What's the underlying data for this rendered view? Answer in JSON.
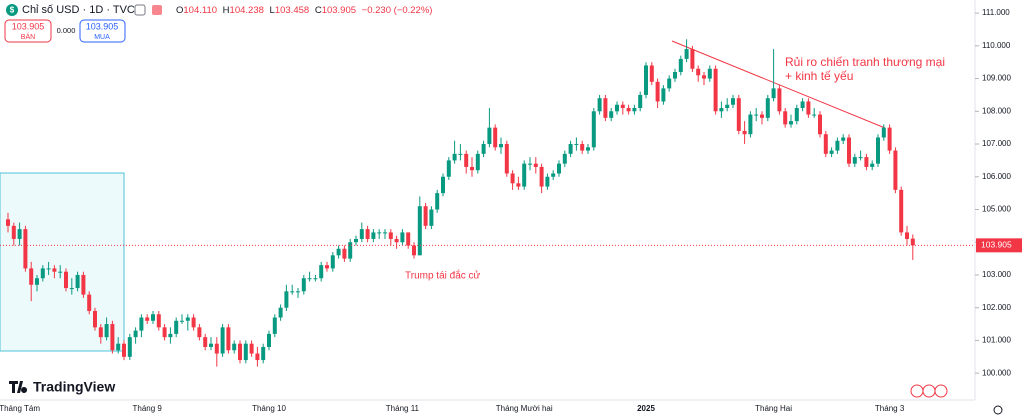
{
  "chart_data": {
    "type": "candlestick",
    "title": "Chỉ số USD · 1D · TVC",
    "legend": {
      "o_label": "O",
      "open": "104.110",
      "h_label": "H",
      "high": "104.238",
      "l_label": "L",
      "low": "103.458",
      "c_label": "C",
      "close": "103.905",
      "change": "−0.230 (−0.22%)"
    },
    "sell": {
      "price": "103.905",
      "label": "BÁN"
    },
    "spread": "0.000",
    "buy": {
      "price": "103.905",
      "label": "MUA"
    },
    "annotations": [
      "Rủi ro chiến tranh thương mại",
      "+ kinh tế yếu",
      "Trump tái đắc cử"
    ],
    "brand": "TradingView",
    "up_color": "#089981",
    "down_color": "#f23645",
    "grid": false,
    "ylim": [
      99.18,
      111.4
    ],
    "yticks": [
      {
        "value": 100,
        "label": "100.000"
      },
      {
        "value": 101,
        "label": "101.000"
      },
      {
        "value": 102,
        "label": "102.000"
      },
      {
        "value": 103,
        "label": "103.000"
      },
      {
        "value": 104,
        "label": "104.000"
      },
      {
        "value": 105,
        "label": "105.000"
      },
      {
        "value": 106,
        "label": "106.000"
      },
      {
        "value": 107,
        "label": "107.000"
      },
      {
        "value": 108,
        "label": "108.000"
      },
      {
        "value": 109,
        "label": "109.000"
      },
      {
        "value": 110,
        "label": "110.000"
      },
      {
        "value": 111,
        "label": "111.000"
      }
    ],
    "categories": [
      null,
      null,
      "Tháng Tám",
      null,
      null,
      null,
      null,
      null,
      null,
      null,
      null,
      null,
      null,
      null,
      null,
      null,
      null,
      null,
      null,
      null,
      null,
      null,
      null,
      null,
      "Tháng 9",
      null,
      null,
      null,
      null,
      null,
      null,
      null,
      null,
      null,
      null,
      null,
      null,
      null,
      null,
      null,
      null,
      null,
      null,
      null,
      null,
      "Tháng 10",
      null,
      null,
      null,
      null,
      null,
      null,
      null,
      null,
      null,
      null,
      null,
      null,
      null,
      null,
      null,
      null,
      null,
      null,
      null,
      null,
      null,
      null,
      "Tháng 11",
      null,
      null,
      null,
      null,
      null,
      null,
      null,
      null,
      null,
      null,
      null,
      null,
      null,
      null,
      null,
      null,
      null,
      null,
      null,
      null,
      "Tháng Mười hai",
      null,
      null,
      null,
      null,
      null,
      null,
      null,
      null,
      null,
      null,
      null,
      null,
      null,
      null,
      null,
      null,
      null,
      null,
      null,
      null,
      "2025",
      null,
      null,
      null,
      null,
      null,
      null,
      null,
      null,
      null,
      null,
      null,
      null,
      null,
      null,
      null,
      null,
      null,
      null,
      null,
      null,
      null,
      "Tháng Hai",
      null,
      null,
      null,
      null,
      null,
      null,
      null,
      null,
      null,
      null,
      null,
      null,
      null,
      null,
      null,
      null,
      null,
      null,
      null,
      "Tháng 3",
      null,
      null,
      null,
      null
    ],
    "ohlc": [
      [
        104.7,
        104.9,
        104.3,
        104.5
      ],
      [
        104.5,
        104.6,
        103.9,
        104.1
      ],
      [
        104.1,
        104.6,
        103.9,
        104.4
      ],
      [
        104.4,
        104.5,
        103.1,
        103.2
      ],
      [
        103.2,
        103.4,
        102.2,
        102.7
      ],
      [
        102.7,
        103.0,
        102.5,
        102.9
      ],
      [
        102.9,
        103.3,
        102.8,
        103.2
      ],
      [
        103.2,
        103.4,
        103.0,
        103.2
      ],
      [
        103.2,
        103.3,
        102.9,
        103.1
      ],
      [
        103.1,
        103.3,
        102.9,
        103.1
      ],
      [
        103.1,
        103.2,
        102.5,
        102.6
      ],
      [
        102.6,
        102.9,
        102.4,
        102.6
      ],
      [
        102.6,
        103.1,
        102.5,
        103.0
      ],
      [
        103.0,
        103.1,
        102.3,
        102.4
      ],
      [
        102.4,
        102.5,
        101.8,
        101.9
      ],
      [
        101.9,
        102.0,
        101.3,
        101.4
      ],
      [
        101.4,
        101.5,
        100.9,
        101.1
      ],
      [
        101.1,
        101.7,
        101.0,
        101.5
      ],
      [
        101.5,
        101.6,
        100.6,
        100.7
      ],
      [
        100.7,
        101.1,
        100.6,
        100.9
      ],
      [
        100.9,
        101.0,
        100.4,
        100.5
      ],
      [
        100.5,
        101.2,
        100.4,
        101.1
      ],
      [
        101.1,
        101.4,
        100.9,
        101.3
      ],
      [
        101.3,
        101.8,
        101.1,
        101.7
      ],
      [
        101.7,
        101.8,
        101.5,
        101.6
      ],
      [
        101.6,
        101.9,
        101.5,
        101.8
      ],
      [
        101.8,
        101.9,
        101.3,
        101.4
      ],
      [
        101.4,
        101.5,
        101.0,
        101.1
      ],
      [
        101.1,
        101.4,
        100.9,
        101.2
      ],
      [
        101.2,
        101.7,
        101.1,
        101.6
      ],
      [
        101.6,
        101.8,
        101.5,
        101.6
      ],
      [
        101.6,
        101.8,
        101.3,
        101.7
      ],
      [
        101.7,
        101.8,
        101.3,
        101.4
      ],
      [
        101.4,
        101.5,
        101.0,
        101.1
      ],
      [
        101.1,
        101.2,
        100.7,
        100.8
      ],
      [
        100.8,
        101.1,
        100.7,
        100.9
      ],
      [
        100.9,
        101.1,
        100.2,
        100.6
      ],
      [
        100.6,
        101.5,
        100.5,
        101.4
      ],
      [
        101.4,
        101.5,
        100.6,
        100.7
      ],
      [
        100.7,
        101.0,
        100.6,
        100.9
      ],
      [
        100.9,
        101.0,
        100.3,
        100.4
      ],
      [
        100.4,
        101.0,
        100.3,
        100.9
      ],
      [
        100.9,
        101.0,
        100.5,
        100.6
      ],
      [
        100.6,
        100.8,
        100.2,
        100.4
      ],
      [
        100.4,
        100.9,
        100.3,
        100.8
      ],
      [
        100.8,
        101.3,
        100.7,
        101.2
      ],
      [
        101.2,
        101.8,
        101.1,
        101.7
      ],
      [
        101.7,
        102.1,
        101.6,
        102.0
      ],
      [
        102.0,
        102.7,
        101.9,
        102.5
      ],
      [
        102.5,
        102.7,
        102.4,
        102.5
      ],
      [
        102.5,
        102.6,
        102.3,
        102.5
      ],
      [
        102.5,
        103.0,
        102.4,
        102.9
      ],
      [
        102.9,
        103.1,
        102.8,
        102.9
      ],
      [
        102.9,
        103.0,
        102.8,
        102.9
      ],
      [
        102.9,
        103.4,
        102.8,
        103.3
      ],
      [
        103.3,
        103.4,
        103.1,
        103.2
      ],
      [
        103.2,
        103.7,
        103.1,
        103.6
      ],
      [
        103.6,
        103.9,
        103.5,
        103.8
      ],
      [
        103.8,
        103.9,
        103.4,
        103.5
      ],
      [
        103.5,
        104.1,
        103.4,
        104.0
      ],
      [
        104.0,
        104.2,
        103.9,
        104.1
      ],
      [
        104.1,
        104.6,
        104.0,
        104.4
      ],
      [
        104.4,
        104.5,
        104.0,
        104.1
      ],
      [
        104.1,
        104.4,
        104.0,
        104.3
      ],
      [
        104.3,
        104.4,
        104.1,
        104.3
      ],
      [
        104.3,
        104.4,
        104.1,
        104.3
      ],
      [
        104.3,
        104.4,
        103.9,
        104.1
      ],
      [
        104.1,
        104.2,
        103.8,
        104.0
      ],
      [
        104.0,
        104.4,
        103.9,
        104.3
      ],
      [
        104.3,
        104.3,
        103.8,
        103.9
      ],
      [
        103.9,
        104.0,
        103.5,
        103.6
      ],
      [
        103.6,
        105.4,
        103.6,
        105.1
      ],
      [
        105.1,
        105.2,
        104.4,
        104.5
      ],
      [
        104.5,
        105.1,
        104.4,
        105.0
      ],
      [
        105.0,
        105.6,
        104.9,
        105.5
      ],
      [
        105.5,
        106.1,
        105.4,
        106.0
      ],
      [
        106.0,
        106.6,
        105.9,
        106.5
      ],
      [
        106.5,
        107.1,
        106.4,
        106.7
      ],
      [
        106.7,
        107.0,
        106.5,
        106.7
      ],
      [
        106.7,
        106.8,
        106.1,
        106.3
      ],
      [
        106.3,
        106.6,
        106.0,
        106.2
      ],
      [
        106.2,
        106.8,
        106.1,
        106.7
      ],
      [
        106.7,
        107.1,
        106.6,
        107.0
      ],
      [
        107.0,
        108.1,
        106.9,
        107.5
      ],
      [
        107.5,
        107.6,
        106.8,
        106.9
      ],
      [
        106.9,
        107.2,
        106.7,
        107.0
      ],
      [
        107.0,
        107.1,
        106.0,
        106.1
      ],
      [
        106.1,
        106.2,
        105.6,
        105.8
      ],
      [
        105.8,
        106.0,
        105.6,
        105.7
      ],
      [
        105.7,
        106.5,
        105.6,
        106.4
      ],
      [
        106.4,
        106.6,
        106.2,
        106.4
      ],
      [
        106.4,
        106.6,
        106.1,
        106.3
      ],
      [
        106.3,
        106.4,
        105.5,
        105.7
      ],
      [
        105.7,
        106.1,
        105.6,
        106.0
      ],
      [
        106.0,
        106.2,
        105.9,
        106.1
      ],
      [
        106.1,
        106.5,
        106.0,
        106.4
      ],
      [
        106.4,
        106.8,
        106.3,
        106.7
      ],
      [
        106.7,
        107.1,
        106.6,
        107.0
      ],
      [
        107.0,
        107.2,
        106.8,
        107.0
      ],
      [
        107.0,
        107.1,
        106.7,
        106.8
      ],
      [
        106.8,
        107.0,
        106.7,
        106.9
      ],
      [
        106.9,
        108.1,
        106.8,
        108.0
      ],
      [
        108.0,
        108.5,
        107.9,
        108.4
      ],
      [
        108.4,
        108.5,
        107.7,
        107.8
      ],
      [
        107.8,
        108.1,
        107.7,
        108.0
      ],
      [
        108.0,
        108.3,
        107.9,
        108.2
      ],
      [
        108.2,
        108.3,
        107.9,
        108.1
      ],
      [
        108.1,
        108.2,
        107.9,
        108.0
      ],
      [
        108.0,
        108.2,
        107.9,
        108.1
      ],
      [
        108.1,
        108.6,
        108.0,
        108.5
      ],
      [
        108.5,
        109.5,
        108.4,
        109.4
      ],
      [
        109.4,
        109.5,
        108.8,
        108.9
      ],
      [
        108.9,
        109.0,
        108.1,
        108.3
      ],
      [
        108.3,
        108.8,
        108.2,
        108.7
      ],
      [
        108.7,
        109.1,
        108.6,
        109.0
      ],
      [
        109.0,
        109.3,
        108.9,
        109.2
      ],
      [
        109.2,
        109.7,
        109.1,
        109.6
      ],
      [
        109.6,
        110.2,
        109.5,
        109.9
      ],
      [
        109.9,
        110.0,
        109.2,
        109.3
      ],
      [
        109.3,
        109.4,
        108.9,
        109.1
      ],
      [
        109.1,
        109.2,
        108.8,
        109.0
      ],
      [
        109.0,
        109.4,
        108.9,
        109.3
      ],
      [
        109.3,
        109.4,
        107.9,
        108.0
      ],
      [
        108.0,
        108.3,
        107.8,
        108.1
      ],
      [
        108.1,
        108.4,
        108.0,
        108.2
      ],
      [
        108.2,
        108.5,
        108.1,
        108.4
      ],
      [
        108.4,
        108.5,
        107.3,
        107.4
      ],
      [
        107.4,
        107.7,
        107.0,
        107.3
      ],
      [
        107.3,
        108.0,
        107.2,
        107.9
      ],
      [
        107.9,
        108.1,
        107.7,
        107.9
      ],
      [
        107.9,
        108.0,
        107.6,
        107.8
      ],
      [
        107.8,
        108.5,
        107.7,
        108.4
      ],
      [
        108.4,
        109.9,
        108.3,
        108.7
      ],
      [
        108.7,
        108.8,
        107.9,
        108.0
      ],
      [
        108.0,
        108.1,
        107.5,
        107.6
      ],
      [
        107.6,
        107.9,
        107.5,
        107.7
      ],
      [
        107.7,
        108.2,
        107.6,
        108.1
      ],
      [
        108.1,
        108.4,
        108.0,
        108.3
      ],
      [
        108.3,
        108.4,
        107.8,
        107.9
      ],
      [
        107.9,
        108.1,
        107.8,
        107.9
      ],
      [
        107.9,
        108.0,
        107.2,
        107.3
      ],
      [
        107.3,
        107.4,
        106.6,
        106.7
      ],
      [
        106.7,
        106.9,
        106.6,
        106.8
      ],
      [
        106.8,
        107.2,
        106.7,
        107.1
      ],
      [
        107.1,
        107.3,
        107.0,
        107.2
      ],
      [
        107.2,
        107.3,
        106.3,
        106.4
      ],
      [
        106.4,
        106.7,
        106.3,
        106.6
      ],
      [
        106.6,
        106.8,
        106.5,
        106.6
      ],
      [
        106.6,
        106.7,
        106.2,
        106.3
      ],
      [
        106.3,
        106.5,
        106.2,
        106.4
      ],
      [
        106.4,
        107.3,
        106.3,
        107.2
      ],
      [
        107.2,
        107.6,
        107.1,
        107.5
      ],
      [
        107.5,
        107.6,
        106.7,
        106.8
      ],
      [
        106.8,
        106.9,
        105.5,
        105.6
      ],
      [
        105.6,
        105.7,
        104.2,
        104.3
      ],
      [
        104.3,
        104.5,
        103.9,
        104.1
      ],
      [
        104.11,
        104.238,
        103.458,
        103.905
      ]
    ]
  }
}
